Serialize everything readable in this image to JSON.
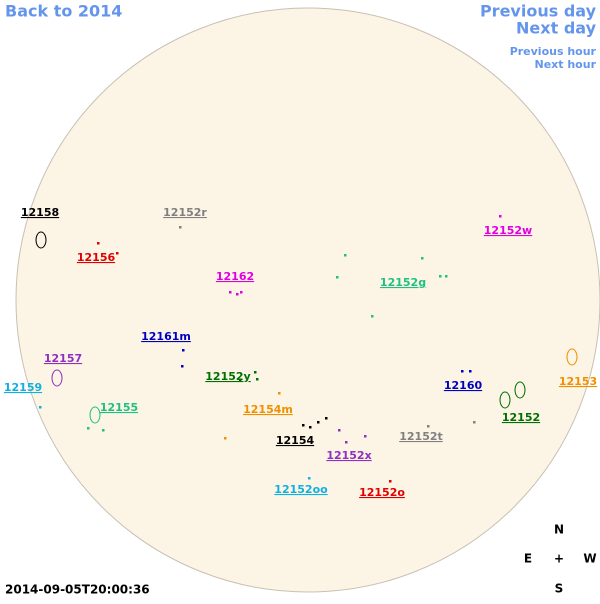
{
  "nav": {
    "back": "Back to 2014",
    "previous_day": "Previous day",
    "next_day": "Next day",
    "previous_hour": "Previous hour",
    "next_hour": "Next hour"
  },
  "timestamp": "2014-09-05T20:00:36",
  "compass": {
    "north": "N",
    "east": "E",
    "center": "+",
    "west": "W",
    "south": "S"
  },
  "regions": [
    {
      "name": "12158",
      "color": "#000000"
    },
    {
      "name": "12152r",
      "color": "#808080"
    },
    {
      "name": "12156",
      "color": "#e00000"
    },
    {
      "name": "12162",
      "color": "#e000e0"
    },
    {
      "name": "12152g",
      "color": "#20c080"
    },
    {
      "name": "12152w",
      "color": "#e000e0"
    },
    {
      "name": "12161m",
      "color": "#0000c0"
    },
    {
      "name": "12157",
      "color": "#9030c0"
    },
    {
      "name": "12159",
      "color": "#10b0e0"
    },
    {
      "name": "12155",
      "color": "#20c080"
    },
    {
      "name": "12152y",
      "color": "#007000"
    },
    {
      "name": "12154m",
      "color": "#f09000"
    },
    {
      "name": "12154",
      "color": "#000000"
    },
    {
      "name": "12152x",
      "color": "#9030c0"
    },
    {
      "name": "12152t",
      "color": "#808080"
    },
    {
      "name": "12160",
      "color": "#0000c0"
    },
    {
      "name": "12153",
      "color": "#f09000"
    },
    {
      "name": "12152",
      "color": "#007000"
    },
    {
      "name": "12152oo",
      "color": "#10b0e0"
    },
    {
      "name": "12152o",
      "color": "#e00000"
    }
  ]
}
